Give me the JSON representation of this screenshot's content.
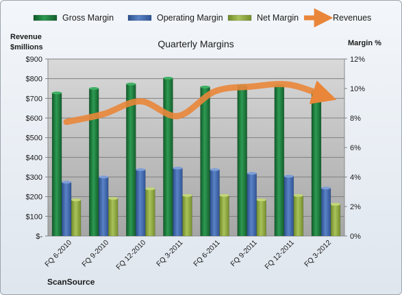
{
  "chart_data": {
    "type": "bar",
    "title": "Quarterly Margins",
    "left_axis_label": [
      "Revenue",
      "$millions"
    ],
    "right_axis_label": "Margin %",
    "footer_label": "ScanSource",
    "categories": [
      "FQ 6-2010",
      "FQ 9-2010",
      "FQ 12-2010",
      "FQ 3-2011",
      "FQ 6-2011",
      "FQ 9-2011",
      "FQ 12-2011",
      "FQ 3-2012"
    ],
    "left_ticks": [
      "$-",
      "$100",
      "$200",
      "$300",
      "$400",
      "$500",
      "$600",
      "$700",
      "$800",
      "$900"
    ],
    "right_ticks": [
      "0%",
      "2%",
      "4%",
      "6%",
      "8%",
      "10%",
      "12%"
    ],
    "left_ylim": [
      0,
      900
    ],
    "right_ylim": [
      0,
      12
    ],
    "series": [
      {
        "name": "Gross Margin",
        "axis": "right",
        "kind": "bar",
        "color": "#1f7a3c",
        "values": [
          9.7,
          10.0,
          10.3,
          10.7,
          10.1,
          10.2,
          10.2,
          9.8
        ]
      },
      {
        "name": "Operating Margin",
        "axis": "right",
        "kind": "bar",
        "color": "#3c64a8",
        "values": [
          3.65,
          4.0,
          4.5,
          4.6,
          4.5,
          4.25,
          4.05,
          3.25
        ]
      },
      {
        "name": "Net Margin",
        "axis": "right",
        "kind": "bar",
        "color": "#93b045",
        "values": [
          2.45,
          2.55,
          3.2,
          2.75,
          2.75,
          2.45,
          2.75,
          2.15
        ]
      },
      {
        "name": "Revenues",
        "axis": "left",
        "kind": "line",
        "color": "#e9863a",
        "values": [
          580,
          620,
          685,
          610,
          735,
          760,
          770,
          710
        ]
      }
    ],
    "legend_position": "top",
    "grid": true
  }
}
